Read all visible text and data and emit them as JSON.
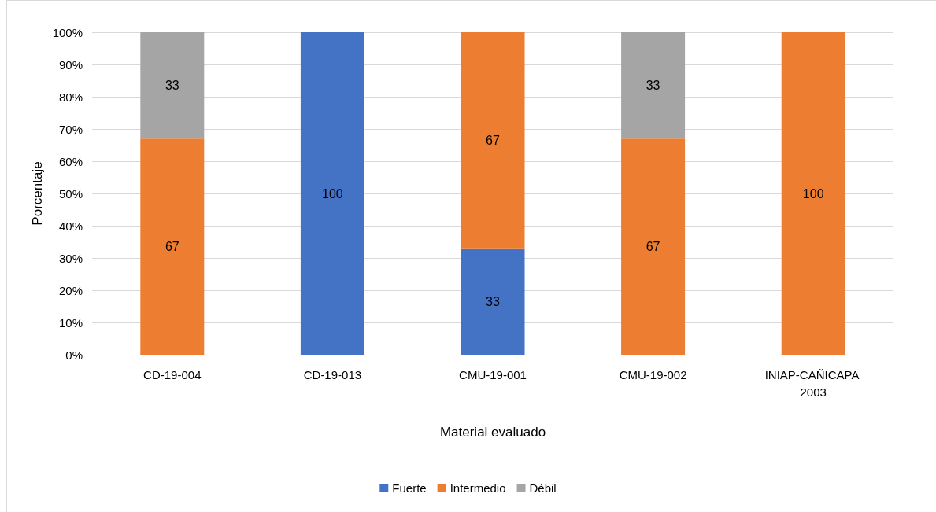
{
  "chart_data": {
    "type": "bar",
    "stacked": true,
    "xlabel": "Material evaluado",
    "ylabel": "Porcentaje",
    "categories": [
      "CD-19-004",
      "CD-19-013",
      "CMU-19-001",
      "CMU-19-002",
      "INIAP-CAÑICAPA 2003"
    ],
    "series": [
      {
        "name": "Fuerte",
        "color": "#4472c4",
        "values": [
          null,
          100,
          33,
          null,
          null
        ]
      },
      {
        "name": "Intermedio",
        "color": "#ed7d31",
        "values": [
          67,
          null,
          67,
          67,
          100
        ]
      },
      {
        "name": "Débil",
        "color": "#a5a5a5",
        "values": [
          33,
          null,
          null,
          33,
          null
        ]
      }
    ],
    "ylim": [
      0,
      100
    ],
    "yticks": [
      {
        "value": 0,
        "label": "0%"
      },
      {
        "value": 10,
        "label": "10%"
      },
      {
        "value": 20,
        "label": "20%"
      },
      {
        "value": 30,
        "label": "30%"
      },
      {
        "value": 40,
        "label": "40%"
      },
      {
        "value": 50,
        "label": "50%"
      },
      {
        "value": 60,
        "label": "60%"
      },
      {
        "value": 70,
        "label": "70%"
      },
      {
        "value": 80,
        "label": "80%"
      },
      {
        "value": 90,
        "label": "90%"
      },
      {
        "value": 100,
        "label": "100%"
      }
    ],
    "data_labels": true,
    "grid": "y",
    "legend": "bottom"
  }
}
